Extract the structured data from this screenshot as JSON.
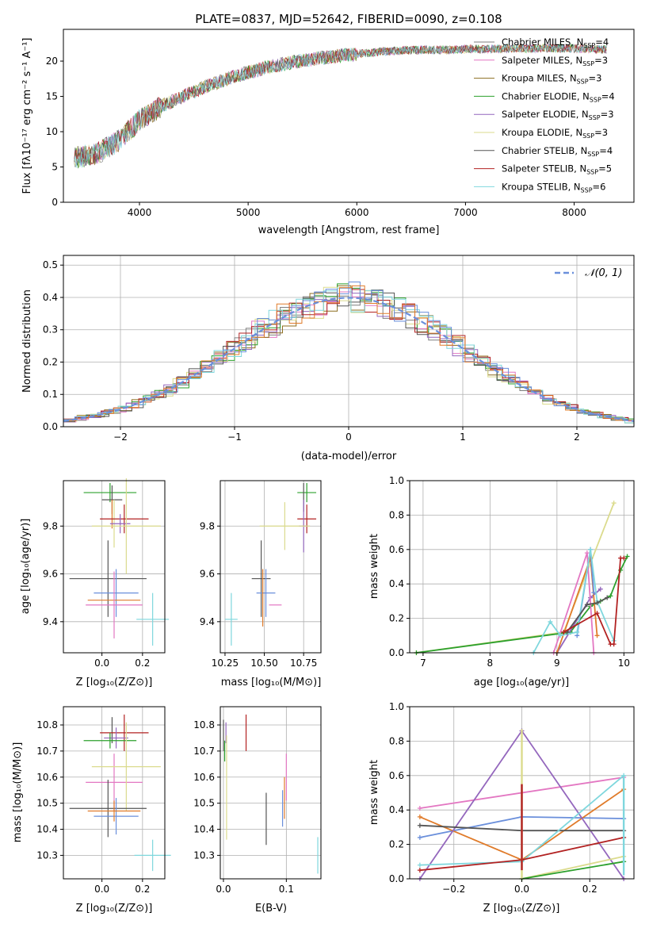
{
  "title": "PLATE=0837, MJD=52642, FIBERID=0090, z=0.108",
  "colors": {
    "chabrier_miles": "#7f7f7f",
    "salpeter_miles": "#e377c2",
    "kroupa_miles": "#8c6d1f",
    "chabrier_elodie": "#2ca02c",
    "salpeter_elodie": "#9467bd",
    "kroupa_elodie": "#dbdb8d",
    "chabrier_stelib": "#555555",
    "salpeter_stelib": "#b22222",
    "kroupa_stelib": "#7fd7dd",
    "blue": "#6a8fdb",
    "orange": "#e07b2a",
    "gaussian": "#6a8fdb"
  },
  "chart_data": [
    {
      "id": "spectrum",
      "type": "line",
      "title": "PLATE=0837, MJD=52642, FIBERID=0090, z=0.108",
      "xlabel": "wavelength [Angstrom, rest frame]",
      "ylabel": "Flux [fλ10⁻¹⁷ erg cm⁻² s⁻¹ A⁻¹]",
      "xlim": [
        3300,
        8550
      ],
      "ylim": [
        0,
        24.5
      ],
      "xticks": [
        "4000",
        "5000",
        "6000",
        "7000",
        "8000"
      ],
      "yticks": [
        "0",
        "5",
        "10",
        "15",
        "20"
      ],
      "legend_position": "right",
      "continuum": {
        "x": [
          3400,
          3600,
          3800,
          4000,
          4200,
          4400,
          4600,
          4800,
          5000,
          5200,
          5400,
          5600,
          5800,
          6000,
          6200,
          6400,
          6600,
          6800,
          7000,
          7200,
          7400,
          7600,
          7800,
          8000,
          8200,
          8300
        ],
        "y": [
          6.3,
          6.8,
          8.6,
          11.6,
          13.6,
          15.0,
          16.3,
          17.4,
          18.4,
          19.2,
          19.8,
          20.3,
          20.7,
          21.0,
          21.3,
          21.5,
          21.6,
          21.6,
          21.7,
          21.7,
          21.8,
          21.8,
          21.8,
          21.8,
          21.7,
          21.6
        ]
      },
      "series": [
        {
          "name": "Chabrier MILES, N_SSP=4",
          "label": "Chabrier MILES, N",
          "sub": "SSP",
          "eq": "=4",
          "color": "#7f7f7f"
        },
        {
          "name": "Salpeter MILES, N_SSP=3",
          "label": "Salpeter MILES, N",
          "sub": "SSP",
          "eq": "=3",
          "color": "#e377c2"
        },
        {
          "name": "Kroupa MILES, N_SSP=3",
          "label": "Kroupa MILES, N",
          "sub": "SSP",
          "eq": "=3",
          "color": "#8c6d1f"
        },
        {
          "name": "Chabrier ELODIE, N_SSP=4",
          "label": "Chabrier ELODIE, N",
          "sub": "SSP",
          "eq": "=4",
          "color": "#2ca02c"
        },
        {
          "name": "Salpeter ELODIE, N_SSP=3",
          "label": "Salpeter ELODIE, N",
          "sub": "SSP",
          "eq": "=3",
          "color": "#9467bd"
        },
        {
          "name": "Kroupa ELODIE, N_SSP=3",
          "label": "Kroupa ELODIE, N",
          "sub": "SSP",
          "eq": "=3",
          "color": "#dbdb8d"
        },
        {
          "name": "Chabrier STELIB, N_SSP=4",
          "label": "Chabrier STELIB, N",
          "sub": "SSP",
          "eq": "=4",
          "color": "#555555"
        },
        {
          "name": "Salpeter STELIB, N_SSP=5",
          "label": "Salpeter STELIB, N",
          "sub": "SSP",
          "eq": "=5",
          "color": "#b22222"
        },
        {
          "name": "Kroupa STELIB, N_SSP=6",
          "label": "Kroupa STELIB, N",
          "sub": "SSP",
          "eq": "=6",
          "color": "#7fd7dd"
        }
      ]
    },
    {
      "id": "residuals",
      "type": "line",
      "xlabel": "(data-model)/error",
      "ylabel": "Normed distribution",
      "xlim": [
        -2.5,
        2.5
      ],
      "ylim": [
        0,
        0.53
      ],
      "xticks": [
        "−2",
        "−1",
        "0",
        "1",
        "2"
      ],
      "yticks": [
        "0.0",
        "0.1",
        "0.2",
        "0.3",
        "0.4",
        "0.5"
      ],
      "legend": "𝒩(0, 1)",
      "gaussian": {
        "mean": 0,
        "sigma": 1
      },
      "grid": true
    },
    {
      "id": "age_vs_Z",
      "type": "scatter",
      "xlabel": "Z [log₁₀(Z/Z⊙)]",
      "ylabel": "age  [log₁₀(age/yr)]",
      "xlim": [
        -0.19,
        0.31
      ],
      "ylim": [
        9.27,
        9.99
      ],
      "xticks": [
        "0.0",
        "0.2"
      ],
      "yticks": [
        "9.4",
        "9.6",
        "9.8"
      ],
      "points": [
        {
          "color": "#2ca02c",
          "x": 0.04,
          "xerr": 0.13,
          "y": 9.94,
          "yerr": 0.04
        },
        {
          "color": "#555555",
          "x": 0.05,
          "xerr": 0.05,
          "y": 9.91,
          "yerr": 0.06
        },
        {
          "color": "#e07b2a",
          "x": 0.05,
          "xerr": 0.0,
          "y": 9.85,
          "yerr": 0.06
        },
        {
          "color": "#dbdb8d",
          "x": 0.06,
          "xerr": 0.0,
          "y": 9.81,
          "yerr": 0.1
        },
        {
          "color": "#b22222",
          "x": 0.11,
          "xerr": 0.12,
          "y": 9.83,
          "yerr": 0.06
        },
        {
          "color": "#9467bd",
          "x": 0.09,
          "xerr": 0.05,
          "y": 9.81,
          "yerr": 0.04
        },
        {
          "color": "#dbdb8d",
          "x": 0.12,
          "xerr": 0.17,
          "y": 9.8,
          "yerr": 0.2
        },
        {
          "color": "#555555",
          "x": 0.03,
          "xerr": 0.19,
          "y": 9.58,
          "yerr": 0.16
        },
        {
          "color": "#6a8fdb",
          "x": 0.07,
          "xerr": 0.11,
          "y": 9.52,
          "yerr": 0.1
        },
        {
          "color": "#e07b2a",
          "x": 0.06,
          "xerr": 0.13,
          "y": 9.49,
          "yerr": 0.0
        },
        {
          "color": "#e377c2",
          "x": 0.06,
          "xerr": 0.14,
          "y": 9.47,
          "yerr": 0.14
        },
        {
          "color": "#7fd7dd",
          "x": 0.25,
          "xerr": 0.08,
          "y": 9.41,
          "yerr": 0.11
        }
      ]
    },
    {
      "id": "age_vs_mass",
      "type": "scatter",
      "xlabel": "mass [log₁₀(M/M⊙)]",
      "ylabel": "",
      "xlim": [
        10.22,
        10.86
      ],
      "ylim": [
        9.27,
        9.99
      ],
      "xticks": [
        "10.25",
        "10.50",
        "10.75"
      ],
      "yticks": [
        "9.4",
        "9.6",
        "9.8"
      ],
      "points": [
        {
          "color": "#2ca02c",
          "x": 10.77,
          "xerr": 0.06,
          "y": 9.94,
          "yerr": 0.04
        },
        {
          "color": "#555555",
          "x": 10.75,
          "xerr": 0.0,
          "y": 9.92,
          "yerr": 0.06
        },
        {
          "color": "#b22222",
          "x": 10.77,
          "xerr": 0.06,
          "y": 9.83,
          "yerr": 0.06
        },
        {
          "color": "#9467bd",
          "x": 10.75,
          "xerr": 0.03,
          "y": 9.8,
          "yerr": 0.11
        },
        {
          "color": "#dbdb8d",
          "x": 10.63,
          "xerr": 0.16,
          "y": 9.8,
          "yerr": 0.1
        },
        {
          "color": "#555555",
          "x": 10.48,
          "xerr": 0.06,
          "y": 9.58,
          "yerr": 0.16
        },
        {
          "color": "#6a8fdb",
          "x": 10.51,
          "xerr": 0.06,
          "y": 9.52,
          "yerr": 0.1
        },
        {
          "color": "#e07b2a",
          "x": 10.49,
          "xerr": 0.0,
          "y": 9.5,
          "yerr": 0.12
        },
        {
          "color": "#e377c2",
          "x": 10.57,
          "xerr": 0.04,
          "y": 9.47,
          "yerr": 0.0
        },
        {
          "color": "#7fd7dd",
          "x": 10.29,
          "xerr": 0.04,
          "y": 9.41,
          "yerr": 0.11
        }
      ]
    },
    {
      "id": "mass_weight_vs_age",
      "type": "line",
      "xlabel": "age  [log₁₀(age/yr)]",
      "ylabel": "mass weight",
      "xlim": [
        6.8,
        10.15
      ],
      "ylim": [
        0,
        1
      ],
      "xticks": [
        "7",
        "8",
        "9",
        "10"
      ],
      "yticks": [
        "0.0",
        "0.2",
        "0.4",
        "0.6",
        "0.8",
        "1.0"
      ],
      "series": [
        {
          "color": "#dbdb8d",
          "x": [
            6.9,
            9.1,
            9.85
          ],
          "y": [
            0.0,
            0.12,
            0.87
          ]
        },
        {
          "color": "#2ca02c",
          "x": [
            6.9,
            9.2,
            9.5,
            9.65,
            9.8,
            9.95,
            10.05
          ],
          "y": [
            0.0,
            0.12,
            0.27,
            0.3,
            0.33,
            0.48,
            0.56
          ]
        },
        {
          "color": "#9467bd",
          "x": [
            9.0,
            9.5,
            9.65
          ],
          "y": [
            0.0,
            0.32,
            0.37
          ]
        },
        {
          "color": "#e377c2",
          "x": [
            8.95,
            9.45,
            9.55
          ],
          "y": [
            0.0,
            0.58,
            0.0
          ]
        },
        {
          "color": "#e07b2a",
          "x": [
            9.0,
            9.5,
            9.6
          ],
          "y": [
            0.0,
            0.55,
            0.1
          ]
        },
        {
          "color": "#6a8fdb",
          "x": [
            9.3,
            9.5,
            9.55
          ],
          "y": [
            0.1,
            0.6,
            0.35
          ]
        },
        {
          "color": "#7fd7dd",
          "x": [
            8.65,
            8.9,
            9.05,
            9.3,
            9.5,
            9.6,
            9.85
          ],
          "y": [
            0.0,
            0.18,
            0.1,
            0.12,
            0.6,
            0.3,
            0.07
          ]
        },
        {
          "color": "#555555",
          "x": [
            9.15,
            9.45,
            9.6,
            9.75
          ],
          "y": [
            0.12,
            0.28,
            0.29,
            0.32
          ]
        },
        {
          "color": "#b22222",
          "x": [
            9.1,
            9.6,
            9.8,
            9.85,
            9.95,
            10.0
          ],
          "y": [
            0.12,
            0.23,
            0.05,
            0.05,
            0.55,
            0.55
          ]
        }
      ]
    },
    {
      "id": "mass_vs_Z",
      "type": "scatter",
      "xlabel": "Z [log₁₀(Z/Z⊙)]",
      "ylabel": "mass [log₁₀(M/M⊙)]",
      "xlim": [
        -0.19,
        0.31
      ],
      "ylim": [
        10.21,
        10.87
      ],
      "xticks": [
        "0.0",
        "0.2"
      ],
      "yticks": [
        "10.3",
        "10.4",
        "10.5",
        "10.6",
        "10.7",
        "10.8"
      ],
      "points": [
        {
          "color": "#555555",
          "x": 0.05,
          "xerr": 0.0,
          "y": 10.78,
          "yerr": 0.05
        },
        {
          "color": "#b22222",
          "x": 0.11,
          "xerr": 0.12,
          "y": 10.77,
          "yerr": 0.07
        },
        {
          "color": "#9467bd",
          "x": 0.07,
          "xerr": 0.06,
          "y": 10.75,
          "yerr": 0.04
        },
        {
          "color": "#2ca02c",
          "x": 0.04,
          "xerr": 0.13,
          "y": 10.74,
          "yerr": 0.03
        },
        {
          "color": "#e377c2",
          "x": 0.06,
          "xerr": 0.14,
          "y": 10.58,
          "yerr": 0.11
        },
        {
          "color": "#dbdb8d",
          "x": 0.12,
          "xerr": 0.17,
          "y": 10.64,
          "yerr": 0.17
        },
        {
          "color": "#555555",
          "x": 0.03,
          "xerr": 0.19,
          "y": 10.48,
          "yerr": 0.11
        },
        {
          "color": "#6a8fdb",
          "x": 0.07,
          "xerr": 0.11,
          "y": 10.45,
          "yerr": 0.07
        },
        {
          "color": "#e07b2a",
          "x": 0.06,
          "xerr": 0.13,
          "y": 10.47,
          "yerr": 0.04
        },
        {
          "color": "#7fd7dd",
          "x": 0.25,
          "xerr": 0.09,
          "y": 10.3,
          "yerr": 0.06
        }
      ]
    },
    {
      "id": "mass_vs_ebv",
      "type": "scatter",
      "xlabel": "E(B-V)",
      "ylabel": "",
      "xlim": [
        -0.005,
        0.155
      ],
      "ylim": [
        10.21,
        10.87
      ],
      "xticks": [
        "0.0",
        "0.1"
      ],
      "yticks": [
        "10.3",
        "10.4",
        "10.5",
        "10.6",
        "10.7",
        "10.8"
      ],
      "points": [
        {
          "color": "#555555",
          "x": 0.0,
          "xerr": 0.0,
          "y": 10.76,
          "yerr": 0.06
        },
        {
          "color": "#9467bd",
          "x": 0.004,
          "xerr": 0.0,
          "y": 10.77,
          "yerr": 0.04
        },
        {
          "color": "#2ca02c",
          "x": 0.002,
          "xerr": 0.0,
          "y": 10.7,
          "yerr": 0.04
        },
        {
          "color": "#dbdb8d",
          "x": 0.005,
          "xerr": 0.0,
          "y": 10.56,
          "yerr": 0.2
        },
        {
          "color": "#b22222",
          "x": 0.036,
          "xerr": 0.0,
          "y": 10.77,
          "yerr": 0.07
        },
        {
          "color": "#555555",
          "x": 0.068,
          "xerr": 0.0,
          "y": 10.44,
          "yerr": 0.1
        },
        {
          "color": "#e377c2",
          "x": 0.1,
          "xerr": 0.0,
          "y": 10.6,
          "yerr": 0.09
        },
        {
          "color": "#e07b2a",
          "x": 0.097,
          "xerr": 0.0,
          "y": 10.52,
          "yerr": 0.08
        },
        {
          "color": "#6a8fdb",
          "x": 0.094,
          "xerr": 0.0,
          "y": 10.48,
          "yerr": 0.07
        },
        {
          "color": "#7fd7dd",
          "x": 0.15,
          "xerr": 0.0,
          "y": 10.3,
          "yerr": 0.07
        }
      ]
    },
    {
      "id": "mass_weight_vs_Z",
      "type": "line",
      "xlabel": "Z [log₁₀(Z/Z⊙)]",
      "ylabel": "mass weight",
      "xlim": [
        -0.33,
        0.33
      ],
      "ylim": [
        0,
        1
      ],
      "xticks": [
        "−0.2",
        "0.0",
        "0.2"
      ],
      "yticks": [
        "0.0",
        "0.2",
        "0.4",
        "0.6",
        "0.8",
        "1.0"
      ],
      "series": [
        {
          "color": "#e377c2",
          "x": [
            -0.3,
            0.3
          ],
          "y": [
            0.41,
            0.59
          ]
        },
        {
          "color": "#6a8fdb",
          "x": [
            -0.3,
            0.0,
            0.3
          ],
          "y": [
            0.24,
            0.36,
            0.35
          ]
        },
        {
          "color": "#e07b2a",
          "x": [
            -0.3,
            0.0,
            0.3
          ],
          "y": [
            0.36,
            0.11,
            0.52
          ]
        },
        {
          "color": "#9467bd",
          "x": [
            -0.3,
            0.0,
            0.3
          ],
          "y": [
            0.0,
            0.86,
            0.0
          ]
        },
        {
          "color": "#555555",
          "x": [
            -0.3,
            0.0,
            0.3
          ],
          "y": [
            0.31,
            0.28,
            0.28
          ]
        },
        {
          "color": "#7fd7dd",
          "x": [
            -0.3,
            0.0,
            0.3
          ],
          "y": [
            0.08,
            0.1,
            0.6
          ]
        },
        {
          "color": "#b22222",
          "x": [
            -0.3,
            0.0,
            0.3
          ],
          "y": [
            0.05,
            0.11,
            0.24
          ]
        },
        {
          "color": "#dbdb8d",
          "x": [
            0.0,
            0.3
          ],
          "y": [
            0.0,
            0.13
          ]
        },
        {
          "color": "#2ca02c",
          "x": [
            0.0,
            0.3
          ],
          "y": [
            0.0,
            0.1
          ]
        }
      ],
      "vertical_markers": [
        {
          "color": "#dbdb8d",
          "x": 0.0,
          "y": [
            0.0,
            0.87
          ]
        },
        {
          "color": "#b22222",
          "x": 0.0,
          "y": [
            0.05,
            0.55
          ]
        },
        {
          "color": "#7fd7dd",
          "x": 0.3,
          "y": [
            0.02,
            0.6
          ]
        }
      ]
    }
  ]
}
